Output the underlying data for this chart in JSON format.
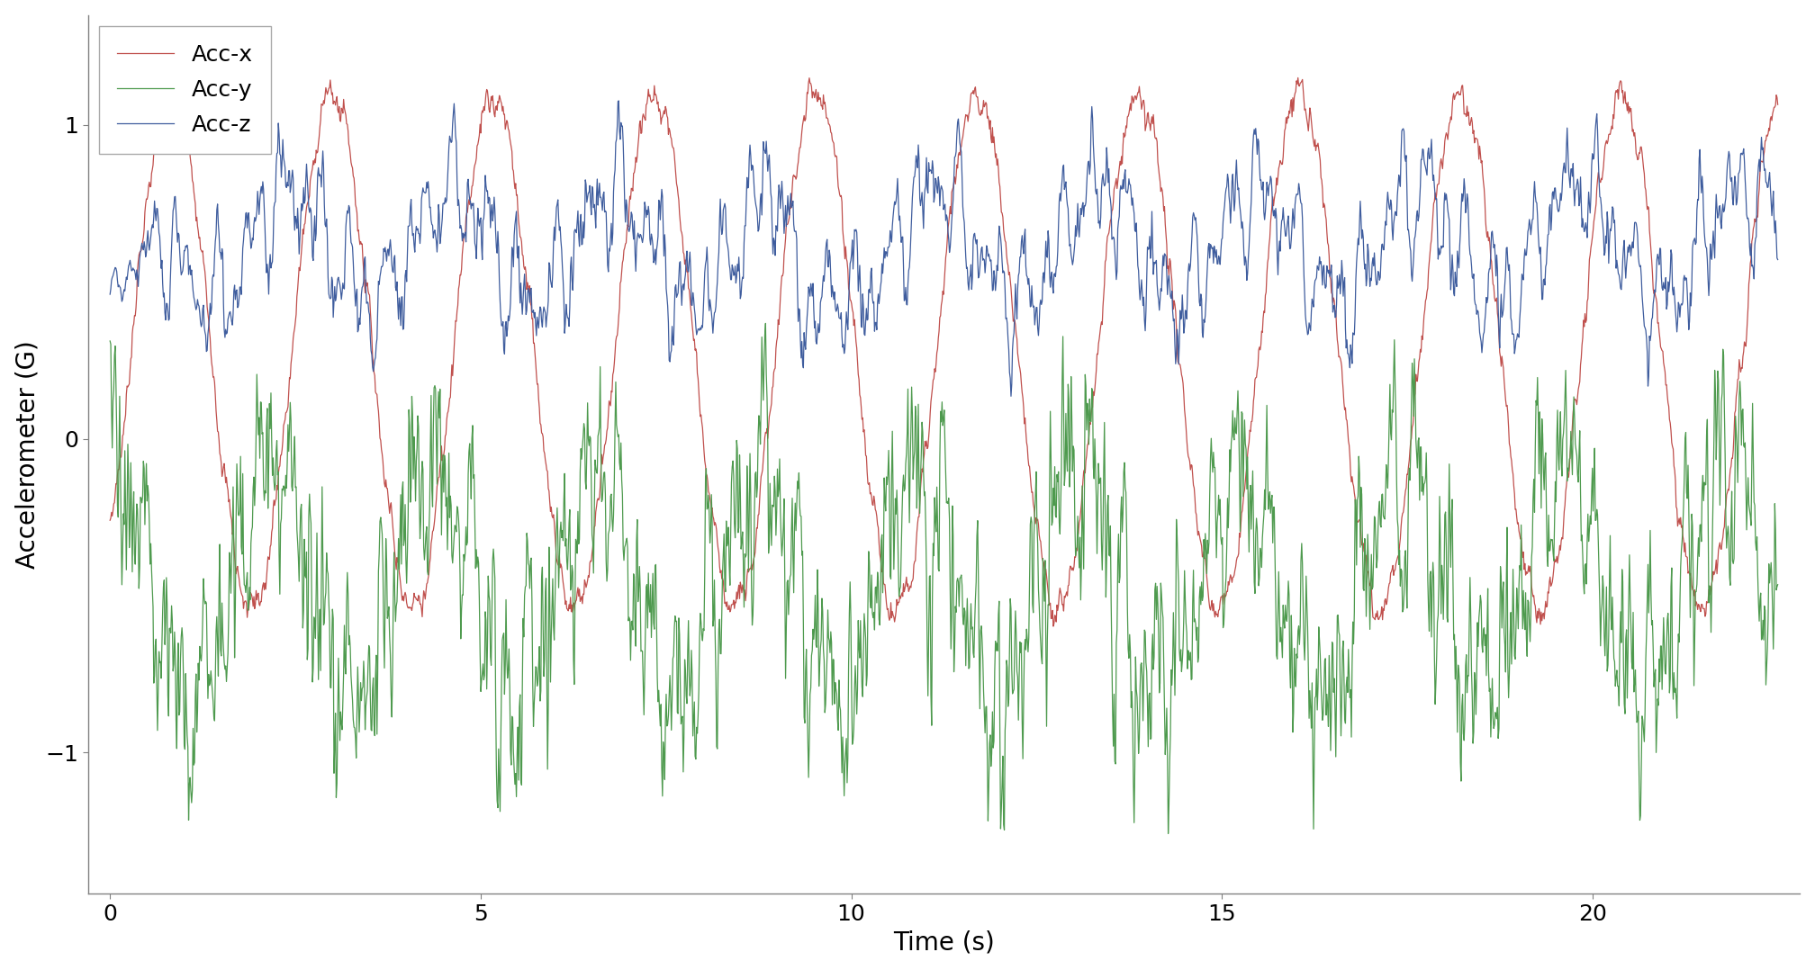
{
  "title": "",
  "xlabel": "Time (s)",
  "ylabel": "Accelerometer (G)",
  "xlim": [
    -0.3,
    22.8
  ],
  "ylim": [
    -1.45,
    1.35
  ],
  "xticks": [
    0,
    5,
    10,
    15,
    20
  ],
  "yticks": [
    -1.0,
    0.0,
    1.0
  ],
  "line_colors": {
    "acc_x": "#c0504d",
    "acc_y": "#4e9a4e",
    "acc_z": "#3f5d9e"
  },
  "legend_labels": [
    "Acc-x",
    "Acc-y",
    "Acc-z"
  ],
  "sample_rate": 100,
  "duration": 22.5,
  "background_color": "#ffffff",
  "linewidth": 0.9,
  "label_fontsize": 20,
  "tick_fontsize": 18,
  "legend_fontsize": 18
}
